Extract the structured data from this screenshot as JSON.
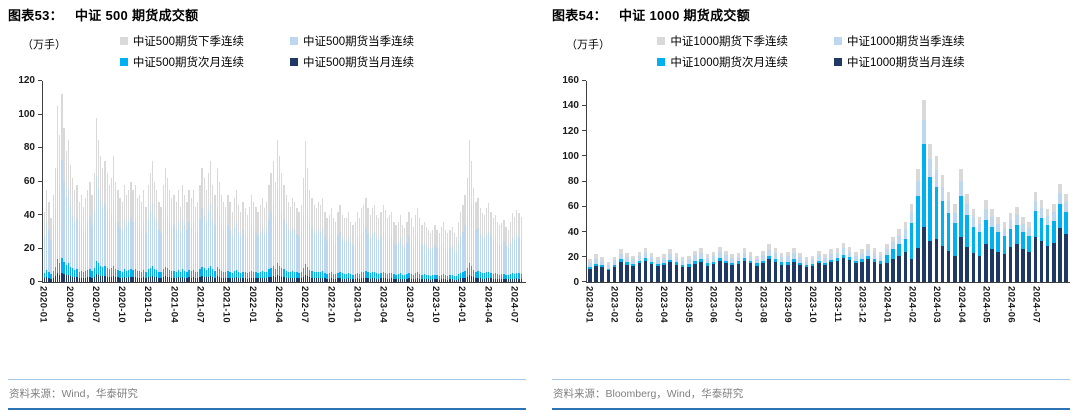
{
  "colors": {
    "navy": "#1f3864",
    "cyan": "#00b0f0",
    "light_blue": "#bdd7ee",
    "gray": "#d9d9d9",
    "axis": "#404040",
    "source_divider": "#a6c8e8",
    "bottom_border": "#2e74b5",
    "source_text": "#808080"
  },
  "chart_data": [
    {
      "figure_label": "图表53：",
      "title": "中证 500 期货成交额",
      "unit_label": "（万手）",
      "source": "资料来源：Wind，华泰研究",
      "type": "bar",
      "stacked": true,
      "unit": "万手",
      "ylim": [
        0,
        120
      ],
      "yticks": [
        0,
        20,
        40,
        60,
        80,
        100,
        120
      ],
      "x_tick_labels": [
        "2020-01",
        "2020-04",
        "2020-07",
        "2020-10",
        "2021-01",
        "2021-04",
        "2021-07",
        "2021-10",
        "2022-01",
        "2022-04",
        "2022-07",
        "2022-10",
        "2023-01",
        "2023-04",
        "2023-07",
        "2023-10",
        "2024-01",
        "2024-04",
        "2024-07"
      ],
      "start_month": "2020-01",
      "bars_per_month": 4,
      "legend": [
        {
          "label": "中证500期货下季连续",
          "color_key": "gray"
        },
        {
          "label": "中证500期货当季连续",
          "color_key": "light_blue"
        },
        {
          "label": "中证500期货次月连续",
          "color_key": "cyan"
        },
        {
          "label": "中证500期货当月连续",
          "color_key": "navy"
        }
      ],
      "series_bottom_to_top": [
        {
          "name": "中证500期货当月连续",
          "color_key": "navy"
        },
        {
          "name": "中证500期货次月连续",
          "color_key": "cyan"
        },
        {
          "name": "中证500期货当季连续",
          "color_key": "light_blue"
        },
        {
          "name": "中证500期货下季连续",
          "color_key": "gray"
        }
      ],
      "composition": {
        "constant_fractions_bottom_to_top": [
          0.05,
          0.08,
          0.52,
          0.35
        ]
      },
      "totals": [
        42,
        55,
        48,
        38,
        52,
        68,
        105,
        88,
        112,
        92,
        78,
        85,
        70,
        62,
        55,
        58,
        48,
        52,
        45,
        50,
        55,
        60,
        52,
        65,
        98,
        85,
        75,
        68,
        72,
        65,
        58,
        62,
        75,
        60,
        55,
        50,
        48,
        58,
        52,
        55,
        60,
        55,
        58,
        50,
        52,
        48,
        55,
        45,
        58,
        65,
        72,
        60,
        55,
        48,
        45,
        58,
        68,
        62,
        55,
        50,
        52,
        48,
        55,
        45,
        58,
        52,
        48,
        55,
        50,
        55,
        45,
        48,
        58,
        68,
        62,
        55,
        65,
        72,
        58,
        52,
        68,
        60,
        52,
        48,
        45,
        52,
        48,
        42,
        50,
        55,
        46,
        42,
        48,
        44,
        40,
        45,
        52,
        48,
        45,
        42,
        46,
        50,
        44,
        48,
        58,
        65,
        72,
        60,
        85,
        75,
        65,
        58,
        52,
        48,
        45,
        50,
        48,
        44,
        42,
        46,
        62,
        84,
        68,
        55,
        50,
        46,
        44,
        48,
        46,
        50,
        42,
        38,
        40,
        44,
        38,
        36,
        42,
        46,
        40,
        38,
        38,
        42,
        36,
        34,
        36,
        42,
        38,
        44,
        46,
        50,
        44,
        40,
        44,
        46,
        40,
        38,
        42,
        46,
        43,
        38,
        40,
        42,
        36,
        34,
        36,
        40,
        34,
        32,
        36,
        42,
        38,
        33,
        40,
        44,
        38,
        34,
        36,
        33,
        31,
        29,
        31,
        34,
        31,
        29,
        33,
        36,
        31,
        29,
        31,
        33,
        29,
        27,
        36,
        42,
        46,
        52,
        62,
        85,
        72,
        56,
        48,
        50,
        44,
        41,
        40,
        44,
        47,
        42,
        38,
        40,
        36,
        34,
        35,
        37,
        33,
        31,
        36,
        41,
        39,
        43,
        41,
        39
      ]
    },
    {
      "figure_label": "图表54：",
      "title": "中证 1000 期货成交额",
      "unit_label": "（万手）",
      "source": "资料来源：Bloomberg，Wind，华泰研究",
      "type": "bar",
      "stacked": true,
      "unit": "万手",
      "ylim": [
        0,
        160
      ],
      "yticks": [
        0,
        20,
        40,
        60,
        80,
        100,
        120,
        140,
        160
      ],
      "x_tick_labels": [
        "2023-01",
        "2023-02",
        "2023-03",
        "2023-04",
        "2023-05",
        "2023-06",
        "2023-07",
        "2023-08",
        "2023-09",
        "2023-10",
        "2023-11",
        "2023-12",
        "2024-01",
        "2024-02",
        "2024-03",
        "2024-04",
        "2024-05",
        "2024-06",
        "2024-07"
      ],
      "start_month": "2023-01",
      "bars_per_month": 4,
      "legend": [
        {
          "label": "中证1000期货下季连续",
          "color_key": "gray"
        },
        {
          "label": "中证1000期货当季连续",
          "color_key": "light_blue"
        },
        {
          "label": "中证1000期货次月连续",
          "color_key": "cyan"
        },
        {
          "label": "中证1000期货当月连续",
          "color_key": "navy"
        }
      ],
      "series_bottom_to_top": [
        {
          "name": "中证1000期货当月连续",
          "color_key": "navy"
        },
        {
          "name": "中证1000期货次月连续",
          "color_key": "cyan"
        },
        {
          "name": "中证1000期货当季连续",
          "color_key": "light_blue"
        },
        {
          "name": "中证1000期货下季连续",
          "color_key": "gray"
        }
      ],
      "composition": {
        "per_month_navy_cyan_fractions": [
          [
            0.58,
            0.08
          ],
          [
            0.6,
            0.09
          ],
          [
            0.62,
            0.08
          ],
          [
            0.6,
            0.08
          ],
          [
            0.58,
            0.1
          ],
          [
            0.6,
            0.08
          ],
          [
            0.62,
            0.09
          ],
          [
            0.6,
            0.08
          ],
          [
            0.58,
            0.09
          ],
          [
            0.6,
            0.08
          ],
          [
            0.62,
            0.08
          ],
          [
            0.6,
            0.09
          ],
          [
            0.5,
            0.22
          ],
          [
            0.3,
            0.46
          ],
          [
            0.34,
            0.42
          ],
          [
            0.4,
            0.36
          ],
          [
            0.46,
            0.3
          ],
          [
            0.5,
            0.26
          ],
          [
            0.5,
            0.28
          ],
          [
            0.55,
            0.25
          ]
        ],
        "remainder_split_light_gray": [
          0.55,
          0.45
        ]
      },
      "totals": [
        18,
        22,
        20,
        16,
        20,
        26,
        23,
        21,
        24,
        27,
        23,
        20,
        22,
        26,
        23,
        20,
        21,
        25,
        27,
        22,
        24,
        28,
        25,
        22,
        23,
        27,
        24,
        21,
        25,
        30,
        27,
        23,
        24,
        27,
        23,
        20,
        21,
        25,
        22,
        26,
        27,
        31,
        28,
        24,
        26,
        30,
        27,
        24,
        30,
        36,
        42,
        48,
        62,
        90,
        145,
        110,
        100,
        85,
        72,
        62,
        90,
        70,
        58,
        52,
        65,
        58,
        52,
        48,
        55,
        60,
        52,
        48,
        72,
        65,
        58,
        62,
        78,
        70
      ]
    }
  ]
}
